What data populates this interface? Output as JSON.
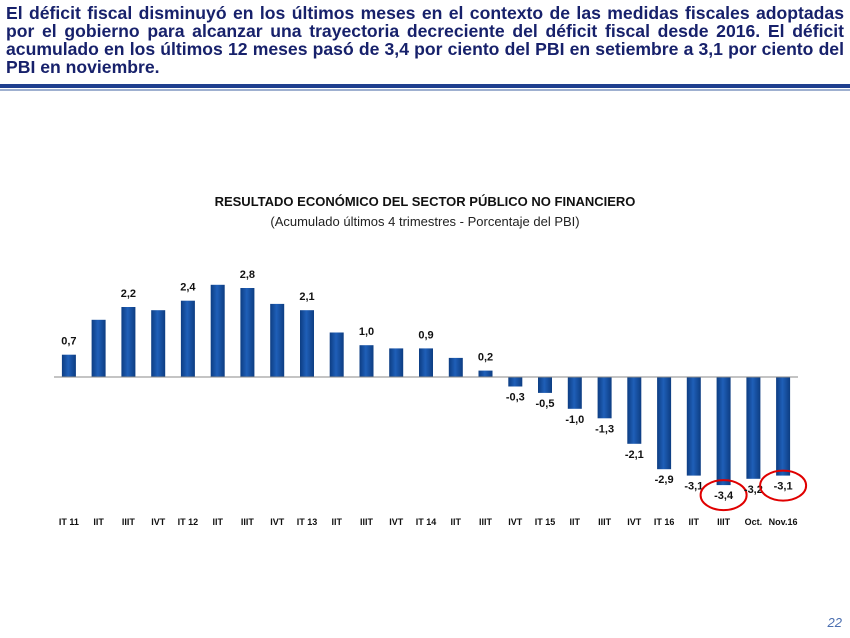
{
  "headline": "El déficit fiscal disminuyó en los últimos meses en el contexto de las medidas fiscales adoptadas por el gobierno para alcanzar una trayectoria decreciente del déficit fiscal desde 2016. El déficit acumulado en los últimos 12 meses pasó de 3,4 por ciento del PBI en setiembre a 3,1 por ciento del PBI en noviembre.",
  "page_number": "22",
  "colors": {
    "bar": "#1f5fb8",
    "bar_dark": "#0d3d82",
    "headline": "#17216b",
    "highlight": "#e00000"
  },
  "chart_data": {
    "type": "bar",
    "title": "RESULTADO ECONÓMICO DEL SECTOR PÚBLICO NO FINANCIERO",
    "subtitle": "(Acumulado últimos 4 trimestres - Porcentaje del PBI)",
    "categories": [
      "IT 11",
      "IIT",
      "IIIT",
      "IVT",
      "IT 12",
      "IIT",
      "IIIT",
      "IVT",
      "IT 13",
      "IIT",
      "IIIT",
      "IVT",
      "IT 14",
      "IIT",
      "IIIT",
      "IVT",
      "IT 15",
      "IIT",
      "IIIT",
      "IVT",
      "IT 16",
      "IIT",
      "IIIT",
      "Oct.",
      "Nov.16"
    ],
    "values": [
      0.7,
      1.8,
      2.2,
      2.1,
      2.4,
      2.9,
      2.8,
      2.3,
      2.1,
      1.4,
      1.0,
      0.9,
      0.9,
      0.6,
      0.2,
      -0.3,
      -0.5,
      -1.0,
      -1.3,
      -2.1,
      -2.9,
      -3.1,
      -3.4,
      -3.2,
      -3.1
    ],
    "data_labels": [
      "0,7",
      "",
      "2,2",
      "",
      "2,4",
      "",
      "2,8",
      "",
      "2,1",
      "",
      "1,0",
      "",
      "0,9",
      "",
      "0,2",
      "-0,3",
      "-0,5",
      "-1,0",
      "-1,3",
      "-2,1",
      "-2,9",
      "-3,1",
      "-3,4",
      "-3,2",
      "-3,1"
    ],
    "highlighted": [
      22,
      24
    ],
    "grid": false,
    "legend": "none"
  }
}
